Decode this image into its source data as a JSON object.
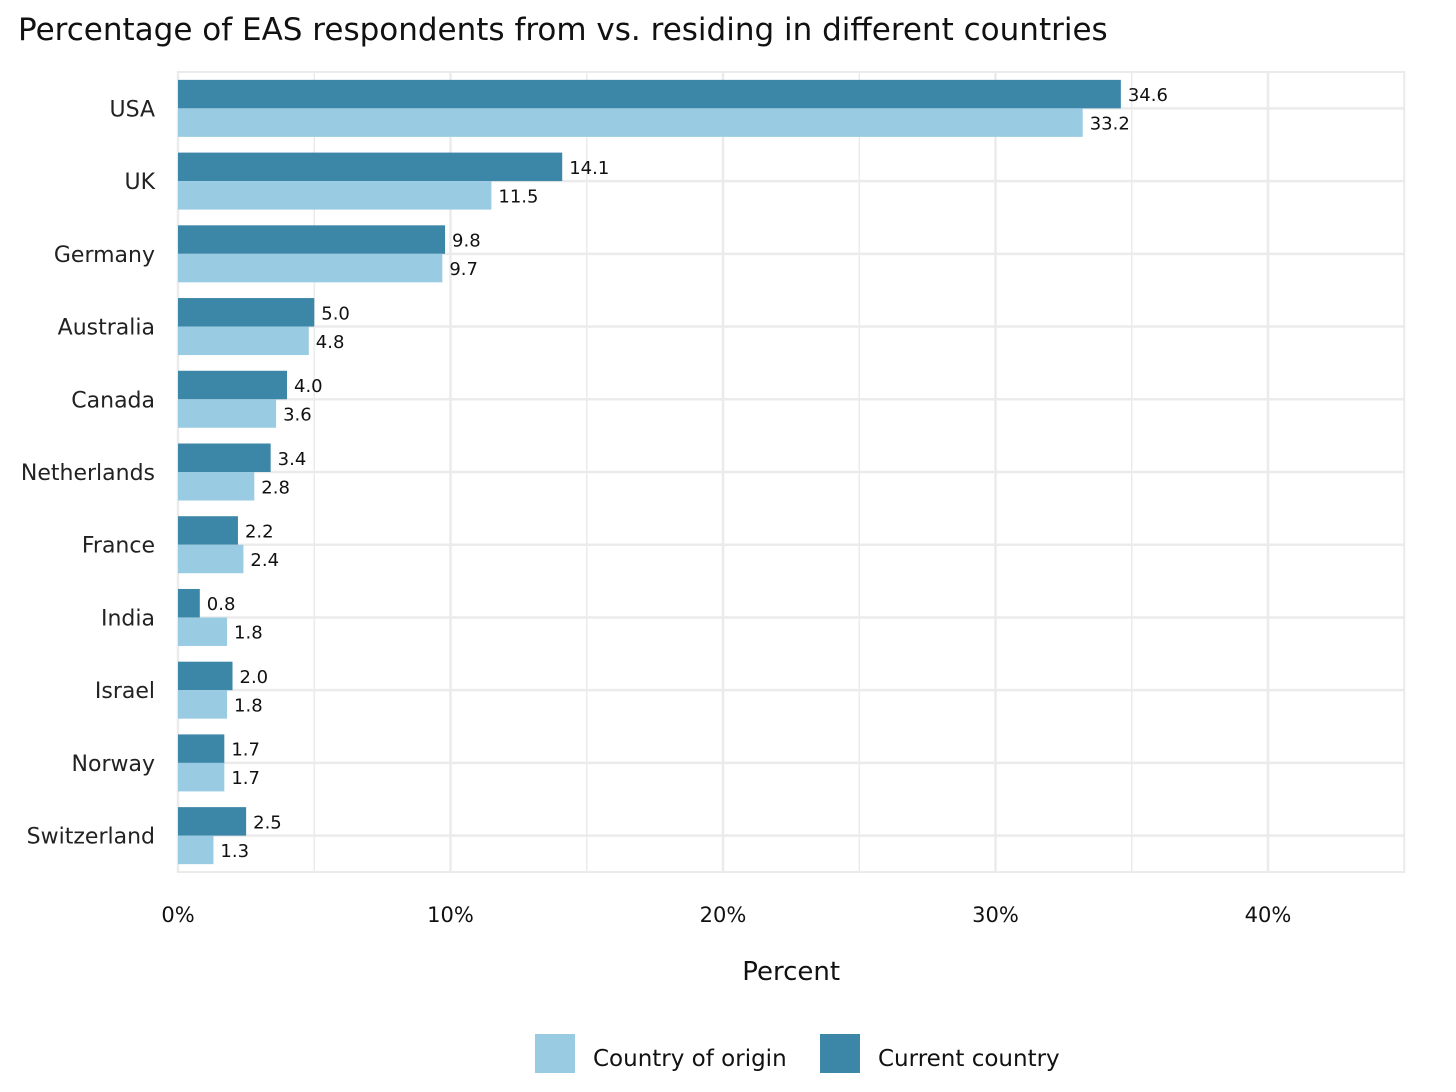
{
  "chart_data": {
    "type": "bar",
    "orientation": "horizontal",
    "title": "Percentage of EAS respondents from vs. residing in different countries",
    "xlabel": "Percent",
    "ylabel": "",
    "xlim": [
      0,
      45
    ],
    "xticks": [
      0,
      10,
      20,
      30,
      40
    ],
    "xtick_labels": [
      "0%",
      "10%",
      "20%",
      "30%",
      "40%"
    ],
    "grid": true,
    "legend_position": "bottom",
    "categories": [
      "USA",
      "UK",
      "Germany",
      "Australia",
      "Canada",
      "Netherlands",
      "France",
      "India",
      "Israel",
      "Norway",
      "Switzerland"
    ],
    "series": [
      {
        "name": "Current country",
        "color": "#3c86a8",
        "values": [
          34.6,
          14.1,
          9.8,
          5.0,
          4.0,
          3.4,
          2.2,
          0.8,
          2.0,
          1.7,
          2.5
        ],
        "labels": [
          "34.6",
          "14.1",
          "9.8",
          "5.0",
          "4.0",
          "3.4",
          "2.2",
          "0.8",
          "2.0",
          "1.7",
          "2.5"
        ]
      },
      {
        "name": "Country of origin",
        "color": "#99cbe3",
        "values": [
          33.2,
          11.5,
          9.7,
          4.8,
          3.6,
          2.8,
          2.4,
          1.8,
          1.8,
          1.7,
          1.3
        ],
        "labels": [
          "33.2",
          "11.5",
          "9.7",
          "4.8",
          "3.6",
          "2.8",
          "2.4",
          "1.8",
          "1.8",
          "1.7",
          "1.3"
        ]
      }
    ],
    "legend": [
      "Country of origin",
      "Current country"
    ]
  }
}
